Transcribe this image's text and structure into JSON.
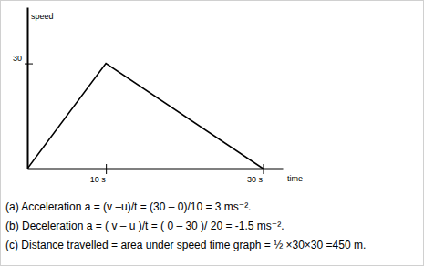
{
  "chart_data": {
    "type": "line",
    "x_label": "time",
    "y_label": "speed",
    "x": [
      0,
      10,
      30
    ],
    "values": [
      0,
      30,
      0
    ],
    "color": "#000000",
    "xlim": [
      0,
      32.5
    ],
    "ylim": [
      0,
      46
    ],
    "xticks": [
      {
        "value": 10,
        "label": "10 s"
      },
      {
        "value": 30,
        "label": "30 s"
      }
    ],
    "yticks": [
      30
    ],
    "grid": false,
    "annotations": [
      "(a) Acceleration a = (v –u)/t = (30 – 0)/10 = 3 ms⁻².",
      "(b) Deceleration  a = ( v – u )/t =  ( 0 – 30 )/ 20  = -1.5 ms⁻².",
      "(c) Distance travelled = area under speed time graph = ½ ×30×30 =450 m."
    ]
  }
}
